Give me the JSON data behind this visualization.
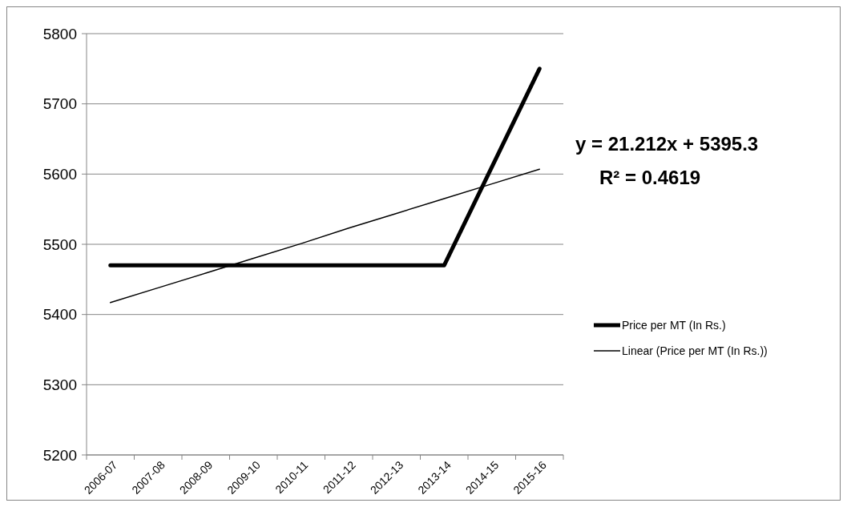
{
  "chart_data": {
    "type": "line",
    "categories": [
      "2006-07",
      "2007-08",
      "2008-09",
      "2009-10",
      "2010-11",
      "2011-12",
      "2012-13",
      "2013-14",
      "2014-15",
      "2015-16"
    ],
    "series": [
      {
        "name": "Price per MT  (In Rs.)",
        "color": "#000000",
        "values": [
          5470,
          5470,
          5470,
          5470,
          5470,
          5470,
          5470,
          5470,
          5610,
          5750
        ]
      },
      {
        "name": "Linear (Price per MT  (In Rs.))",
        "color": "#000000",
        "values": [
          5417,
          5438,
          5459,
          5480,
          5501,
          5523,
          5544,
          5565,
          5586,
          5607
        ]
      }
    ],
    "ylim": [
      5200,
      5800
    ],
    "yticks": [
      5200,
      5300,
      5400,
      5500,
      5600,
      5700,
      5800
    ],
    "grid": "y",
    "legend": "right",
    "marker": "none",
    "annotations": [
      "y = 21.212x + 5395.3",
      "R² = 0.4619"
    ]
  }
}
